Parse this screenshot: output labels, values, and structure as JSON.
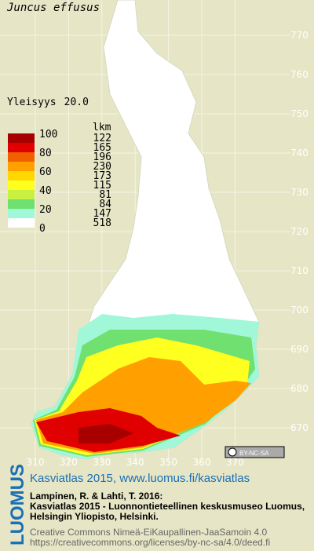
{
  "title": "Juncus effusus",
  "frequency": {
    "label": "Yleisyys",
    "value": "20.0"
  },
  "legend": {
    "count_header": "lkm",
    "scale_labels": [
      "100",
      "80",
      "60",
      "40",
      "20",
      "0"
    ],
    "classes": [
      {
        "color": "#a80000",
        "count": "122"
      },
      {
        "color": "#e00000",
        "count": "165"
      },
      {
        "color": "#f06000",
        "count": "196"
      },
      {
        "color": "#ffa000",
        "count": "230"
      },
      {
        "color": "#ffd800",
        "count": "173"
      },
      {
        "color": "#ffff20",
        "count": "115"
      },
      {
        "color": "#c8f040",
        "count": "81"
      },
      {
        "color": "#70e070",
        "count": "84"
      },
      {
        "color": "#a0f8d8",
        "count": "147"
      },
      {
        "color": "#ffffff",
        "count": "518"
      }
    ]
  },
  "grid": {
    "x_labels": [
      "310",
      "320",
      "330",
      "340",
      "350",
      "360",
      "370"
    ],
    "y_labels": [
      "770",
      "760",
      "750",
      "740",
      "730",
      "720",
      "710",
      "700",
      "690",
      "680",
      "670"
    ]
  },
  "license_badge": "BY-NC-SA",
  "footer": {
    "brand": "LUOMUS",
    "link": "Kasviatlas 2015, www.luomus.fi/kasviatlas",
    "citation": [
      "Lampinen, R. & Lahti, T. 2016:",
      "Kasviatlas 2015 - Luonnontieteellinen keskusmuseo Luomus,",
      "Helsingin Yliopisto, Helsinki."
    ],
    "license": [
      "Creative Commons Nimeä-EiKaupallinen-JaaSamoin 4.0",
      "https://creativecommons.org/licenses/by-nc-sa/4.0/deed.fi"
    ]
  }
}
